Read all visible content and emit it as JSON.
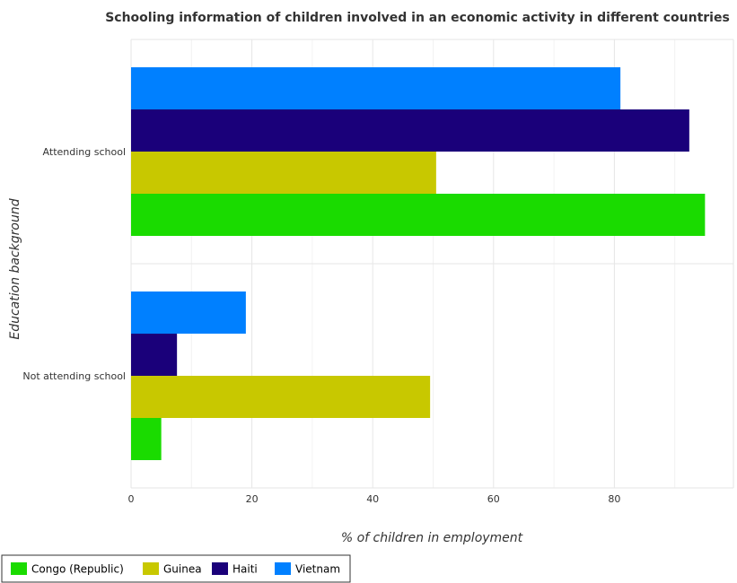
{
  "chart_data": {
    "type": "bar",
    "orientation": "horizontal",
    "title": "Schooling information of children involved in an economic activity in different countries",
    "xlabel": "% of children in employment",
    "ylabel": "Education background",
    "categories": [
      "Not attending school",
      "Attending school"
    ],
    "xlim": [
      0,
      100
    ],
    "xticks": [
      0,
      20,
      40,
      60,
      80
    ],
    "grid": true,
    "legend_position": "bottom-left",
    "series": [
      {
        "name": "Congo (Republic)",
        "color": "#1adb00",
        "values": [
          5.0,
          95.0
        ]
      },
      {
        "name": "Guinea",
        "color": "#c8c800",
        "values": [
          49.5,
          50.5
        ]
      },
      {
        "name": "Haiti",
        "color": "#1a007a",
        "values": [
          7.6,
          92.4
        ]
      },
      {
        "name": "Vietnam",
        "color": "#0080ff",
        "values": [
          19.0,
          81.0
        ]
      }
    ]
  }
}
